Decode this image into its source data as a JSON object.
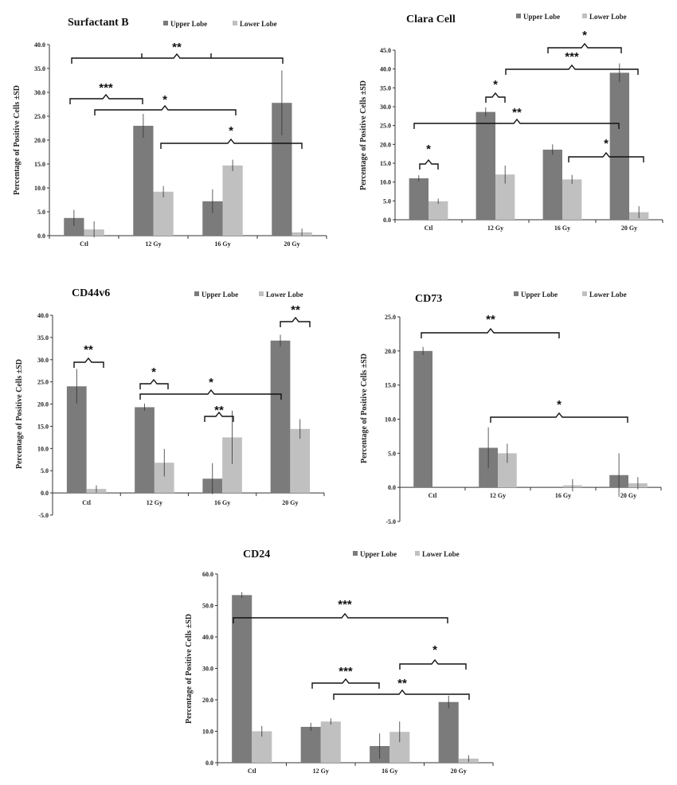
{
  "colors": {
    "upper": "#7b7b7b",
    "lower": "#c0c0c0",
    "axis": "#333333",
    "bracket": "#111111"
  },
  "chart_data": [
    {
      "type": "bar",
      "title": "Surfactant B",
      "ylabel": "Percentage of Positive Cells ±SD",
      "ylim": [
        0,
        40
      ],
      "yticks": [
        "0.0",
        "5.0",
        "10.0",
        "15.0",
        "20.0",
        "25.0",
        "30.0",
        "35.0",
        "40.0"
      ],
      "categories": [
        "Ctl",
        "12 Gy",
        "16 Gy",
        "20 Gy"
      ],
      "series": [
        {
          "name": "Upper Lobe",
          "values": [
            3.7,
            23.0,
            7.2,
            27.8
          ],
          "errors": [
            1.7,
            2.5,
            2.5,
            6.8
          ]
        },
        {
          "name": "Lower Lobe",
          "values": [
            1.3,
            9.2,
            14.7,
            0.7
          ],
          "errors": [
            1.7,
            1.2,
            1.2,
            0.8
          ]
        }
      ],
      "significance": [
        "**",
        "***",
        "*",
        "*"
      ]
    },
    {
      "type": "bar",
      "title": "Clara Cell",
      "ylabel": "Percentage of Positive Cells ±SD",
      "ylim": [
        0,
        45
      ],
      "yticks": [
        "0.0",
        "5.0",
        "10.0",
        "15.0",
        "20.0",
        "25.0",
        "30.0",
        "35.0",
        "40.0",
        "45.0"
      ],
      "categories": [
        "Ctl",
        "12 Gy",
        "16 Gy",
        "20 Gy"
      ],
      "series": [
        {
          "name": "Upper Lobe",
          "values": [
            11.0,
            28.6,
            18.6,
            39.0
          ],
          "errors": [
            0.8,
            1.2,
            1.4,
            2.5
          ]
        },
        {
          "name": "Lower Lobe",
          "values": [
            4.9,
            12.0,
            10.7,
            2.0
          ],
          "errors": [
            0.7,
            2.4,
            1.2,
            1.6
          ]
        }
      ],
      "significance": [
        "*",
        "*",
        "**",
        "*",
        "***",
        "*"
      ]
    },
    {
      "type": "bar",
      "title": "CD44v6",
      "ylabel": "Percentage of Positive Cells ±SD",
      "ylim": [
        -5,
        40
      ],
      "yticks": [
        "-5.0",
        "0.0",
        "5.0",
        "10.0",
        "15.0",
        "20.0",
        "25.0",
        "30.0",
        "35.0",
        "40.0"
      ],
      "categories": [
        "Ctl",
        "12 Gy",
        "16 Gy",
        "20 Gy"
      ],
      "series": [
        {
          "name": "Upper Lobe",
          "values": [
            24.0,
            19.3,
            3.2,
            34.3
          ],
          "errors": [
            3.9,
            0.8,
            3.5,
            1.3
          ]
        },
        {
          "name": "Lower Lobe",
          "values": [
            0.9,
            6.8,
            12.5,
            14.4
          ],
          "errors": [
            0.8,
            3.1,
            6.0,
            2.2
          ]
        }
      ],
      "significance": [
        "**",
        "*",
        "*",
        "**",
        "**"
      ]
    },
    {
      "type": "bar",
      "title": "CD73",
      "ylabel": "Percentage of Positive Cells ±SD",
      "ylim": [
        -5,
        25
      ],
      "yticks": [
        "-5.0",
        "0.0",
        "5.0",
        "10.0",
        "15.0",
        "20.0",
        "25.0"
      ],
      "categories": [
        "Ctl",
        "12 Gy",
        "16 Gy",
        "20 Gy"
      ],
      "series": [
        {
          "name": "Upper Lobe",
          "values": [
            20.0,
            5.8,
            0.0,
            1.8
          ],
          "errors": [
            0.6,
            3.0,
            0.0,
            3.2
          ]
        },
        {
          "name": "Lower Lobe",
          "values": [
            0.0,
            5.0,
            0.3,
            0.6
          ],
          "errors": [
            0.0,
            1.4,
            0.9,
            0.9
          ]
        }
      ],
      "significance": [
        "**",
        "*"
      ]
    },
    {
      "type": "bar",
      "title": "CD24",
      "ylabel": "Percentage of Positive Cells ±SD",
      "ylim": [
        0,
        60
      ],
      "yticks": [
        "0.0",
        "10.0",
        "20.0",
        "30.0",
        "40.0",
        "50.0",
        "60.0"
      ],
      "categories": [
        "Ctl",
        "12 Gy",
        "16 Gy",
        "20 Gy"
      ],
      "series": [
        {
          "name": "Upper Lobe",
          "values": [
            53.3,
            11.4,
            5.3,
            19.3
          ],
          "errors": [
            0.9,
            1.3,
            4.0,
            2.0
          ]
        },
        {
          "name": "Lower Lobe",
          "values": [
            10.0,
            13.1,
            9.8,
            1.3
          ],
          "errors": [
            1.7,
            1.0,
            3.3,
            1.1
          ]
        }
      ],
      "significance": [
        "***",
        "*",
        "***",
        "**"
      ]
    }
  ]
}
